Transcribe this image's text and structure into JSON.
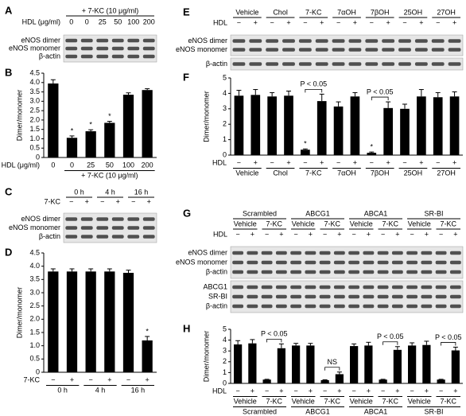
{
  "blots": {
    "A": {
      "letter": "A",
      "header": [
        {
          "cells": [
            "+ 7-KC (10 μg/ml)"
          ]
        },
        {
          "label": "HDL (μg/ml)",
          "cells": [
            "0",
            "0",
            "25",
            "50",
            "100",
            "200"
          ]
        }
      ],
      "bands": [
        [
          "eNOS dimer",
          "eNOS monomer",
          "β-actin"
        ]
      ]
    },
    "C": {
      "letter": "C",
      "header": [
        {
          "cells": [
            "0 h",
            "4 h",
            "16 h"
          ]
        },
        {
          "label": "7-KC",
          "cells": [
            "−",
            "+",
            "−",
            "+",
            "−",
            "+"
          ]
        }
      ],
      "bands": [
        [
          "eNOS dimer",
          "eNOS monomer",
          "β-actin"
        ]
      ]
    },
    "E": {
      "letter": "E",
      "header": [
        {
          "cells": [
            "Vehicle",
            "Chol",
            "7-KC",
            "7αOH",
            "7βOH",
            "25OH",
            "27OH"
          ]
        },
        {
          "label": "HDL",
          "cells": [
            "−",
            "+",
            "−",
            "+",
            "−",
            "+",
            "−",
            "+",
            "−",
            "+",
            "−",
            "+",
            "−",
            "+"
          ]
        }
      ],
      "bands": [
        [
          "eNOS dimer",
          "eNOS monomer"
        ],
        [
          "β-actin"
        ]
      ]
    },
    "G": {
      "letter": "G",
      "header": [
        {
          "cells": [
            "Scrambled",
            "ABCG1",
            "ABCA1",
            "SR-BI"
          ]
        },
        {
          "cells": [
            "Vehicle",
            "7-KC",
            "Vehicle",
            "7-KC",
            "Vehicle",
            "7-KC",
            "Vehicle",
            "7-KC"
          ]
        },
        {
          "label": "HDL",
          "cells": [
            "−",
            "+",
            "−",
            "+",
            "−",
            "+",
            "−",
            "+",
            "−",
            "+",
            "−",
            "+",
            "−",
            "+",
            "−",
            "+"
          ]
        }
      ],
      "bands": [
        [
          "eNOS dimer",
          "eNOS monomer",
          "β-actin"
        ],
        [
          "ABCG1",
          "SR-BI",
          "β-actin"
        ]
      ]
    }
  },
  "chart_data": [
    {
      "type": "bar",
      "letter": "B",
      "ylabel": "Dimer/monomer",
      "xlabel": "HDL (μg/ml)",
      "annotation": "+ 7-KC (10 μg/ml)",
      "categories": [
        "0",
        "0",
        "25",
        "50",
        "100",
        "200"
      ],
      "values": [
        3.95,
        1.05,
        1.4,
        1.85,
        3.35,
        3.6
      ],
      "errors": [
        0.2,
        0.1,
        0.08,
        0.08,
        0.1,
        0.07
      ],
      "marks": [
        null,
        "*",
        "*",
        "*",
        null,
        null
      ],
      "color": "#000000",
      "ylim": [
        0,
        4.5
      ],
      "yticks": [
        0,
        0.5,
        {
          "value": 1,
          "label": "1.0"
        },
        1.5,
        {
          "value": 2,
          "label": "2.0"
        },
        2.5,
        {
          "value": 3,
          "label": "3.0"
        },
        3.5,
        {
          "value": 4,
          "label": "4.0"
        },
        4.5
      ]
    },
    {
      "type": "bar",
      "letter": "D",
      "ylabel": "Dimer/monomer",
      "xlabel": "7-KC",
      "categories": [
        "−",
        "+",
        "−",
        "+",
        "−",
        "+"
      ],
      "groups": [
        "0 h",
        "4 h",
        "16 h"
      ],
      "values": [
        3.8,
        3.8,
        3.8,
        3.8,
        3.75,
        1.2
      ],
      "errors": [
        0.1,
        0.1,
        0.1,
        0.1,
        0.1,
        0.15
      ],
      "marks": [
        null,
        null,
        null,
        null,
        null,
        "*"
      ],
      "color": "#000000",
      "ylim": [
        0,
        4.5
      ],
      "yticks": [
        0,
        0.5,
        {
          "value": 1,
          "label": "1.0"
        },
        1.5,
        {
          "value": 2,
          "label": "2.0"
        },
        2.5,
        {
          "value": 3,
          "label": "3.0"
        },
        3.5,
        {
          "value": 4,
          "label": "4.0"
        },
        4.5
      ]
    },
    {
      "type": "bar",
      "letter": "F",
      "ylabel": "Dimer/monomer",
      "xlabel": "HDL",
      "categories": [
        "−",
        "+",
        "−",
        "+",
        "−",
        "+",
        "−",
        "+",
        "−",
        "+",
        "−",
        "+",
        "−",
        "+"
      ],
      "groups": [
        "Vehicle",
        "Chol",
        "7-KC",
        "7αOH",
        "7βOH",
        "25OH",
        "27OH"
      ],
      "group_notes": [
        null,
        null,
        "P < 0.05",
        null,
        "P < 0.05",
        null,
        null
      ],
      "values": [
        3.85,
        3.9,
        3.8,
        3.85,
        0.35,
        3.5,
        3.15,
        3.8,
        0.15,
        3.05,
        3.0,
        3.8,
        3.75,
        3.8
      ],
      "errors": [
        0.35,
        0.35,
        0.25,
        0.3,
        0.05,
        0.45,
        0.3,
        0.25,
        0.05,
        0.4,
        0.3,
        0.45,
        0.3,
        0.3
      ],
      "marks": [
        null,
        null,
        null,
        null,
        "*",
        null,
        null,
        null,
        "*",
        null,
        null,
        null,
        null,
        null
      ],
      "color": "#000000",
      "ylim": [
        0,
        5
      ],
      "yticks": [
        0,
        1,
        2,
        3,
        4,
        5
      ]
    },
    {
      "type": "bar",
      "letter": "H",
      "ylabel": "Dimer/monomer",
      "xlabel": "HDL",
      "categories": [
        "−",
        "+",
        "−",
        "+",
        "−",
        "+",
        "−",
        "+",
        "−",
        "+",
        "−",
        "+",
        "−",
        "+",
        "−",
        "+"
      ],
      "subgroups": [
        "Vehicle",
        "7-KC",
        "Vehicle",
        "7-KC",
        "Vehicle",
        "7-KC",
        "Vehicle",
        "7-KC"
      ],
      "groups": [
        "Scrambled",
        "ABCG1",
        "ABCA1",
        "SR-BI"
      ],
      "group_notes": [
        "P < 0.05",
        "NS",
        "P < 0.05",
        "P < 0.05"
      ],
      "values": [
        3.6,
        3.7,
        0.35,
        3.25,
        3.5,
        3.5,
        0.3,
        0.85,
        3.45,
        3.5,
        0.35,
        3.1,
        3.5,
        3.55,
        0.35,
        3.05
      ],
      "errors": [
        0.35,
        0.35,
        0.03,
        0.4,
        0.2,
        0.2,
        0.03,
        0.2,
        0.2,
        0.3,
        0.03,
        0.3,
        0.25,
        0.35,
        0.03,
        0.3
      ],
      "color": "#000000",
      "ylim": [
        0,
        5
      ],
      "yticks": [
        0,
        1,
        2,
        3,
        4,
        5
      ]
    }
  ]
}
